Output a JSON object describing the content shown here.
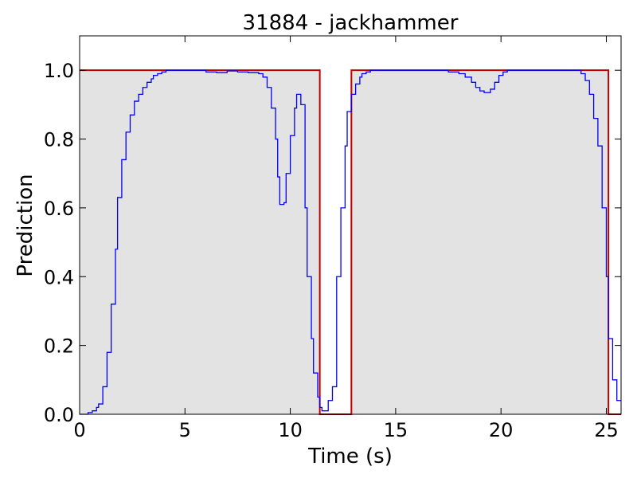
{
  "chart_data": {
    "type": "line",
    "title": "31884 - jackhammer",
    "xlabel": "Time (s)",
    "ylabel": "Prediction",
    "xlim": [
      0,
      25.7
    ],
    "ylim": [
      0,
      1.1
    ],
    "xticks": [
      0,
      5,
      10,
      15,
      20,
      25
    ],
    "yticks": [
      0.0,
      0.2,
      0.4,
      0.6,
      0.8,
      1.0
    ],
    "xtick_labels": [
      "0",
      "5",
      "10",
      "15",
      "20",
      "25"
    ],
    "ytick_labels": [
      "0.0",
      "0.2",
      "0.4",
      "0.6",
      "0.8",
      "1.0"
    ],
    "grid": false,
    "colors": {
      "prediction": "#0000ff",
      "ground_truth": "#c00000",
      "event_fill": "#e3e3e3"
    },
    "series": [
      {
        "style": "step",
        "color": "#0000ff",
        "x": [
          0,
          0.4,
          0.6,
          0.8,
          0.9,
          1.1,
          1.3,
          1.5,
          1.7,
          1.8,
          2.0,
          2.2,
          2.4,
          2.6,
          2.8,
          3.0,
          3.2,
          3.4,
          3.5,
          3.7,
          3.9,
          4.1,
          4.3,
          4.6,
          5.0,
          5.5,
          6.0,
          6.5,
          7.0,
          7.5,
          8.0,
          8.5,
          8.7,
          8.9,
          9.1,
          9.3,
          9.4,
          9.5,
          9.7,
          9.8,
          10.0,
          10.2,
          10.3,
          10.5,
          10.7,
          10.8,
          11.0,
          11.1,
          11.3,
          11.4,
          11.5,
          11.7,
          11.8,
          12.0,
          12.2,
          12.4,
          12.6,
          12.7,
          12.9,
          13.1,
          13.3,
          13.4,
          13.6,
          13.8,
          14.0,
          14.2,
          14.4,
          14.6,
          14.8,
          15.5,
          16.5,
          17.5,
          18.0,
          18.3,
          18.6,
          18.8,
          19.0,
          19.2,
          19.5,
          19.7,
          19.9,
          20.1,
          20.3,
          20.5,
          21.0,
          22.0,
          23.0,
          23.8,
          24.0,
          24.2,
          24.4,
          24.6,
          24.8,
          25.0,
          25.1,
          25.3,
          25.5,
          25.7
        ],
        "y": [
          0,
          0.005,
          0.01,
          0.02,
          0.03,
          0.08,
          0.18,
          0.32,
          0.48,
          0.63,
          0.74,
          0.82,
          0.87,
          0.91,
          0.93,
          0.95,
          0.965,
          0.975,
          0.985,
          0.99,
          0.995,
          1.0,
          1.0,
          1.0,
          1.0,
          1.0,
          0.995,
          0.993,
          0.998,
          0.995,
          0.993,
          0.99,
          0.98,
          0.95,
          0.89,
          0.8,
          0.69,
          0.61,
          0.615,
          0.7,
          0.81,
          0.89,
          0.93,
          0.9,
          0.6,
          0.4,
          0.22,
          0.12,
          0.05,
          0.02,
          0.01,
          0.01,
          0.04,
          0.08,
          0.4,
          0.6,
          0.78,
          0.88,
          0.93,
          0.96,
          0.98,
          0.99,
          0.995,
          1.0,
          1.0,
          1.0,
          1.0,
          1.0,
          1.0,
          1.0,
          1.0,
          0.995,
          0.99,
          0.98,
          0.965,
          0.95,
          0.94,
          0.935,
          0.945,
          0.965,
          0.985,
          0.995,
          1.0,
          1.0,
          1.0,
          1.0,
          1.0,
          0.99,
          0.97,
          0.93,
          0.86,
          0.78,
          0.6,
          0.4,
          0.22,
          0.1,
          0.04,
          0.04
        ]
      },
      {
        "style": "step",
        "color": "#c00000",
        "x": [
          0,
          11.4,
          12.9,
          25.1,
          25.7
        ],
        "y": [
          1,
          0,
          1,
          0,
          0
        ]
      }
    ]
  }
}
